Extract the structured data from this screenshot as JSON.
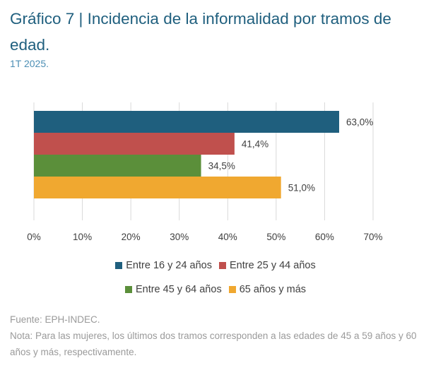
{
  "title": "Gráfico 7 | Incidencia de la informalidad por tramos de edad.",
  "subtitle": "1T 2025.",
  "chart_data": {
    "type": "bar",
    "orientation": "horizontal",
    "categories": [
      "Entre 16 y 24 años",
      "Entre 25 y 44 años",
      "Entre 45 y 64 años",
      "65 años y más"
    ],
    "values": [
      63.0,
      41.4,
      34.5,
      51.0
    ],
    "data_labels": [
      "63,0%",
      "41,4%",
      "34,5%",
      "51,0%"
    ],
    "colors": [
      "#1f5f7e",
      "#c0504d",
      "#5b8f3a",
      "#f0a830"
    ],
    "xlim": [
      0,
      70
    ],
    "x_ticks": [
      "0%",
      "10%",
      "20%",
      "30%",
      "40%",
      "50%",
      "60%",
      "70%"
    ],
    "grid": "vertical gridlines",
    "legend_position": "bottom"
  },
  "legend": [
    {
      "label": "Entre 16 y 24 años",
      "color": "#1f5f7e"
    },
    {
      "label": "Entre 25 y 44 años",
      "color": "#c0504d"
    },
    {
      "label": "Entre 45 y 64 años",
      "color": "#5b8f3a"
    },
    {
      "label": "65 años y más",
      "color": "#f0a830"
    }
  ],
  "source": "Fuente: EPH-INDEC.",
  "note": "Nota: Para las mujeres, los últimos dos tramos corresponden a las edades de 45 a 59 años y 60 años y más, respectivamente."
}
